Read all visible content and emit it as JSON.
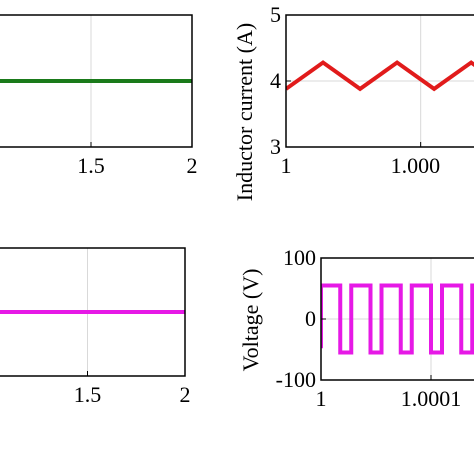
{
  "chart_data": [
    {
      "id": "tl",
      "type": "line",
      "ylabel": "",
      "xlim": [
        1.0,
        2.0
      ],
      "xticks": [
        {
          "value": 1.5,
          "label": "1.5"
        },
        {
          "value": 2.0,
          "label": "2"
        }
      ],
      "yticks": [],
      "grid": true,
      "series": [
        {
          "color": "#1a7a1a",
          "x": [
            1.0,
            2.0
          ],
          "y": [
            1.0,
            1.0
          ]
        }
      ]
    },
    {
      "id": "tr",
      "type": "line",
      "ylabel": "Inductor current (A)",
      "xlim": [
        1.0,
        1.00015
      ],
      "ylim": [
        3,
        5
      ],
      "xticks": [
        {
          "value": 1.0,
          "label": "1"
        },
        {
          "value": 1.0001,
          "label": "1.000"
        }
      ],
      "yticks": [
        {
          "value": 3,
          "label": "3"
        },
        {
          "value": 4,
          "label": "4"
        },
        {
          "value": 5,
          "label": "5"
        }
      ],
      "grid": true,
      "series": [
        {
          "color": "#e11b1b",
          "x": [
            1.0,
            1.0000275,
            1.000055,
            1.0000825,
            1.00011,
            1.0001375,
            1.00015
          ],
          "y": [
            3.88,
            4.28,
            3.88,
            4.28,
            3.88,
            4.28,
            4.1
          ]
        }
      ]
    },
    {
      "id": "bl",
      "type": "line",
      "ylabel": "",
      "xlim": [
        1.0,
        2.0
      ],
      "xticks": [
        {
          "value": 1.5,
          "label": "1.5"
        },
        {
          "value": 2.0,
          "label": "2"
        }
      ],
      "yticks": [],
      "grid": true,
      "series": [
        {
          "color": "#e619e6",
          "x": [
            1.0,
            2.0
          ],
          "y": [
            1.0,
            1.0
          ]
        }
      ]
    },
    {
      "id": "br",
      "type": "line",
      "ylabel": "Voltage (V)",
      "xlim": [
        1.0,
        1.00015
      ],
      "ylim": [
        -100,
        100
      ],
      "xticks": [
        {
          "value": 1.0,
          "label": "1"
        },
        {
          "value": 1.0001,
          "label": "1.0001"
        }
      ],
      "yticks": [
        {
          "value": -100,
          "label": "-100"
        },
        {
          "value": 0,
          "label": "0"
        },
        {
          "value": 100,
          "label": "100"
        }
      ],
      "grid": true,
      "series": [
        {
          "color": "#e619e6",
          "x": [
            1.0,
            1.0,
            1.0000175,
            1.0000175,
            1.0000275,
            1.0000275,
            1.000045,
            1.000045,
            1.000055,
            1.000055,
            1.0000725,
            1.0000725,
            1.0000825,
            1.0000825,
            1.0001,
            1.0001,
            1.00011,
            1.00011,
            1.0001275,
            1.0001275,
            1.0001375,
            1.0001375,
            1.00015
          ],
          "y": [
            -48,
            55,
            55,
            -55,
            -55,
            55,
            55,
            -55,
            -55,
            55,
            55,
            -55,
            -55,
            55,
            55,
            -55,
            -55,
            55,
            55,
            -55,
            -55,
            55,
            55
          ]
        }
      ]
    }
  ]
}
